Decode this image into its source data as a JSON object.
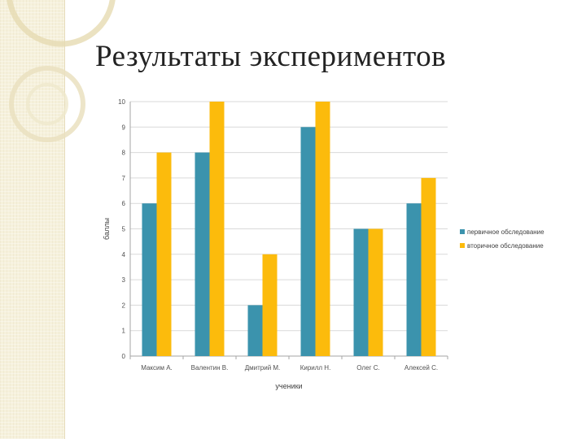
{
  "slide": {
    "title": "Результаты экспериментов"
  },
  "chart_data": {
    "type": "bar",
    "categories": [
      "Максим А.",
      "Валентин В.",
      "Дмитрий М.",
      "Кирилл Н.",
      "Олег С.",
      "Алексей С."
    ],
    "series": [
      {
        "name": "первичное обследование",
        "values": [
          6,
          8,
          2,
          9,
          5,
          6
        ],
        "color": "#3b93ad"
      },
      {
        "name": "вторичное обследование",
        "values": [
          8,
          10,
          4,
          10,
          5,
          7
        ],
        "color": "#fcbb0c"
      }
    ],
    "ylim": [
      0,
      10
    ],
    "yticks": [
      0,
      1,
      2,
      3,
      4,
      5,
      6,
      7,
      8,
      9,
      10
    ],
    "xlabel": "ученики",
    "ylabel": "баллы",
    "grid": true,
    "legend": "right",
    "colors": {
      "grid": "#d9d9d9",
      "axis": "#a6a6a6"
    }
  }
}
